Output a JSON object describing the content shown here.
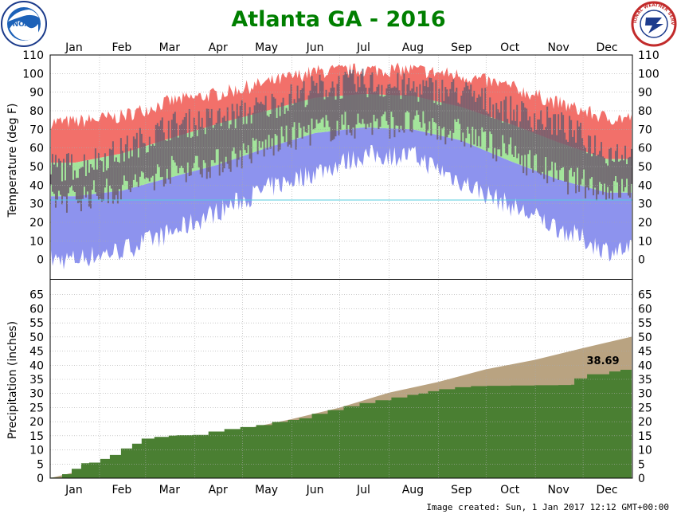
{
  "header": {
    "title": "Atlanta GA - 2016",
    "title_color": "#007f00",
    "noaa_logo_text": "NOAA",
    "nws_logo_text": "NATIONAL WEATHER SERVICE"
  },
  "footer": {
    "created": "Image created: Sun, 1 Jan 2017 12:12 GMT+00:00"
  },
  "colors": {
    "record_high": "#f2706a",
    "normal_range": "#a3e59b",
    "record_low": "#8d93ee",
    "actual_bar": "#6e5e6e",
    "freezing_line": "#55ccdd",
    "normal_precip": "#b9a381",
    "actual_precip": "#4a7f32",
    "grid": "#aaaaaa"
  },
  "chart_data": [
    {
      "type": "area",
      "panel": "temperature",
      "year": 2016,
      "ylabel": "Temperature (deg F)",
      "ylim": [
        -10,
        110
      ],
      "y_ticks": [
        0,
        10,
        20,
        30,
        40,
        50,
        60,
        70,
        80,
        90,
        100,
        110
      ],
      "months": [
        "Jan",
        "Feb",
        "Mar",
        "Apr",
        "May",
        "Jun",
        "Jul",
        "Aug",
        "Sep",
        "Oct",
        "Nov",
        "Dec"
      ],
      "freezing_line": 32,
      "grid": true,
      "monthly_mid_values": {
        "record_high": [
          74,
          77,
          85,
          89,
          95,
          101,
          102,
          102,
          99,
          93,
          84,
          76
        ],
        "normal_high": [
          52,
          57,
          65,
          73,
          80,
          87,
          89,
          88,
          82,
          73,
          63,
          54
        ],
        "normal_low": [
          34,
          37,
          44,
          51,
          60,
          68,
          71,
          70,
          64,
          53,
          43,
          36
        ],
        "record_low": [
          0,
          5,
          14,
          26,
          38,
          47,
          56,
          56,
          42,
          29,
          17,
          5
        ],
        "actual_high": [
          50,
          58,
          72,
          75,
          82,
          92,
          95,
          92,
          90,
          80,
          73,
          58
        ],
        "actual_low": [
          33,
          38,
          48,
          52,
          61,
          70,
          73,
          73,
          68,
          58,
          44,
          38
        ]
      }
    },
    {
      "type": "area",
      "panel": "precipitation",
      "ylabel": "Precipitation (inches)",
      "ylim": [
        0,
        70
      ],
      "y_ticks": [
        0,
        5,
        10,
        15,
        20,
        25,
        30,
        35,
        40,
        45,
        50,
        55,
        60,
        65
      ],
      "months": [
        "Jan",
        "Feb",
        "Mar",
        "Apr",
        "May",
        "Jun",
        "Jul",
        "Aug",
        "Sep",
        "Oct",
        "Nov",
        "Dec"
      ],
      "grid": true,
      "year_total_label": "38.69",
      "normal_cumulative_by_month_end": [
        4.2,
        8.8,
        13.7,
        17.2,
        20.9,
        24.9,
        30.2,
        34.0,
        38.5,
        41.9,
        46.0,
        50.1
      ],
      "actual_cumulative_points": [
        [
          1,
          0.2
        ],
        [
          8,
          1.4
        ],
        [
          14,
          3.3
        ],
        [
          20,
          5.3
        ],
        [
          25,
          5.5
        ],
        [
          32,
          6.8
        ],
        [
          38,
          8.2
        ],
        [
          45,
          10.5
        ],
        [
          52,
          12.2
        ],
        [
          58,
          14.0
        ],
        [
          66,
          14.6
        ],
        [
          75,
          15.1
        ],
        [
          80,
          15.2
        ],
        [
          90,
          15.3
        ],
        [
          100,
          16.5
        ],
        [
          110,
          17.4
        ],
        [
          120,
          18.1
        ],
        [
          130,
          18.8
        ],
        [
          140,
          19.9
        ],
        [
          150,
          20.6
        ],
        [
          157,
          21.2
        ],
        [
          165,
          22.8
        ],
        [
          175,
          24.1
        ],
        [
          185,
          25.5
        ],
        [
          195,
          26.6
        ],
        [
          205,
          27.6
        ],
        [
          215,
          28.6
        ],
        [
          225,
          29.5
        ],
        [
          232,
          30.0
        ],
        [
          238,
          30.8
        ],
        [
          245,
          31.5
        ],
        [
          255,
          32.2
        ],
        [
          265,
          32.6
        ],
        [
          275,
          32.7
        ],
        [
          290,
          32.8
        ],
        [
          305,
          32.9
        ],
        [
          320,
          33.0
        ],
        [
          328,
          33.1
        ],
        [
          330,
          35.3
        ],
        [
          338,
          36.8
        ],
        [
          352,
          37.8
        ],
        [
          359,
          38.4
        ],
        [
          366,
          38.69
        ]
      ]
    }
  ]
}
